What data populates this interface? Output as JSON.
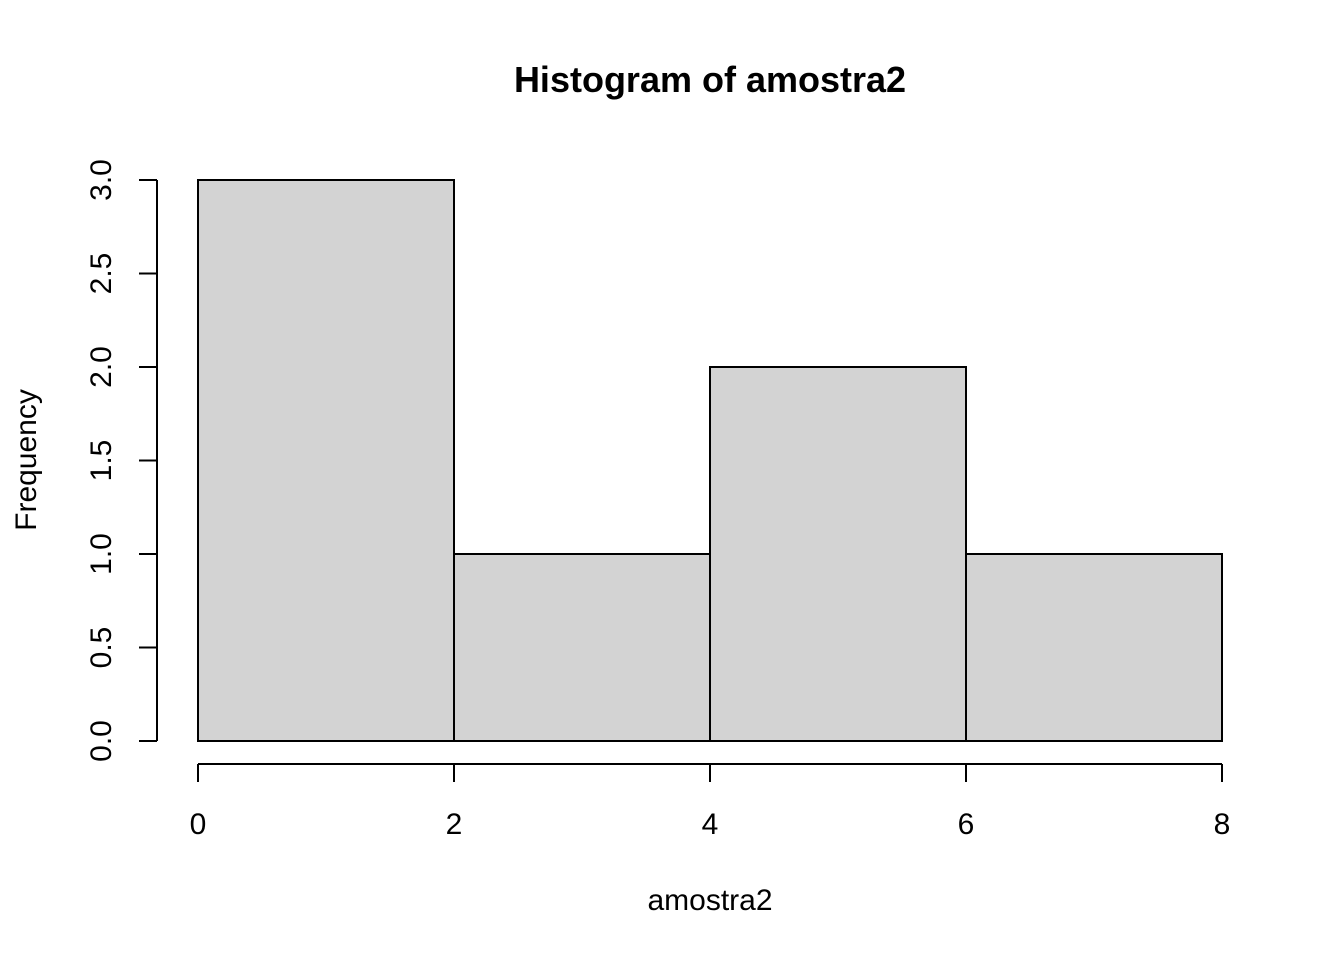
{
  "chart_data": {
    "type": "bar",
    "subtype": "histogram",
    "title": "Histogram of amostra2",
    "xlabel": "amostra2",
    "ylabel": "Frequency",
    "bins": [
      {
        "from": 0,
        "to": 2,
        "count": 3
      },
      {
        "from": 2,
        "to": 4,
        "count": 1
      },
      {
        "from": 4,
        "to": 6,
        "count": 2
      },
      {
        "from": 6,
        "to": 8,
        "count": 1
      }
    ],
    "xlim": [
      0,
      8
    ],
    "ylim": [
      0,
      3
    ],
    "x_ticks": [
      0,
      2,
      4,
      6,
      8
    ],
    "x_tick_labels": [
      "0",
      "2",
      "4",
      "6",
      "8"
    ],
    "y_ticks": [
      0,
      0.5,
      1,
      1.5,
      2,
      2.5,
      3
    ],
    "y_tick_labels": [
      "0.0",
      "0.5",
      "1.0",
      "1.5",
      "2.0",
      "2.5",
      "3.0"
    ],
    "bar_color": "#d3d3d3",
    "border_color": "#000000",
    "grid": false,
    "legend": "none"
  }
}
